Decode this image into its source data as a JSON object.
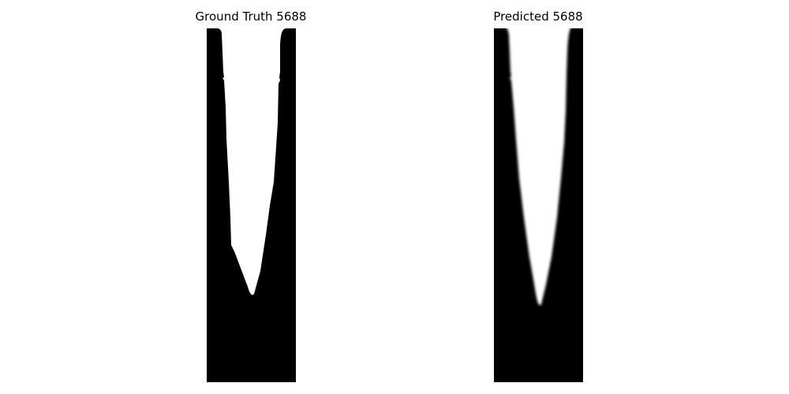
{
  "panels": [
    {
      "title": "Ground Truth 5688",
      "kind": "ground-truth mask",
      "edge": "sharp"
    },
    {
      "title": "Predicted 5688",
      "kind": "predicted mask",
      "edge": "soft"
    }
  ],
  "colors": {
    "background": "#ffffff",
    "mask_fg": "#ffffff",
    "mask_bg": "#000000",
    "title_text": "#000000"
  }
}
